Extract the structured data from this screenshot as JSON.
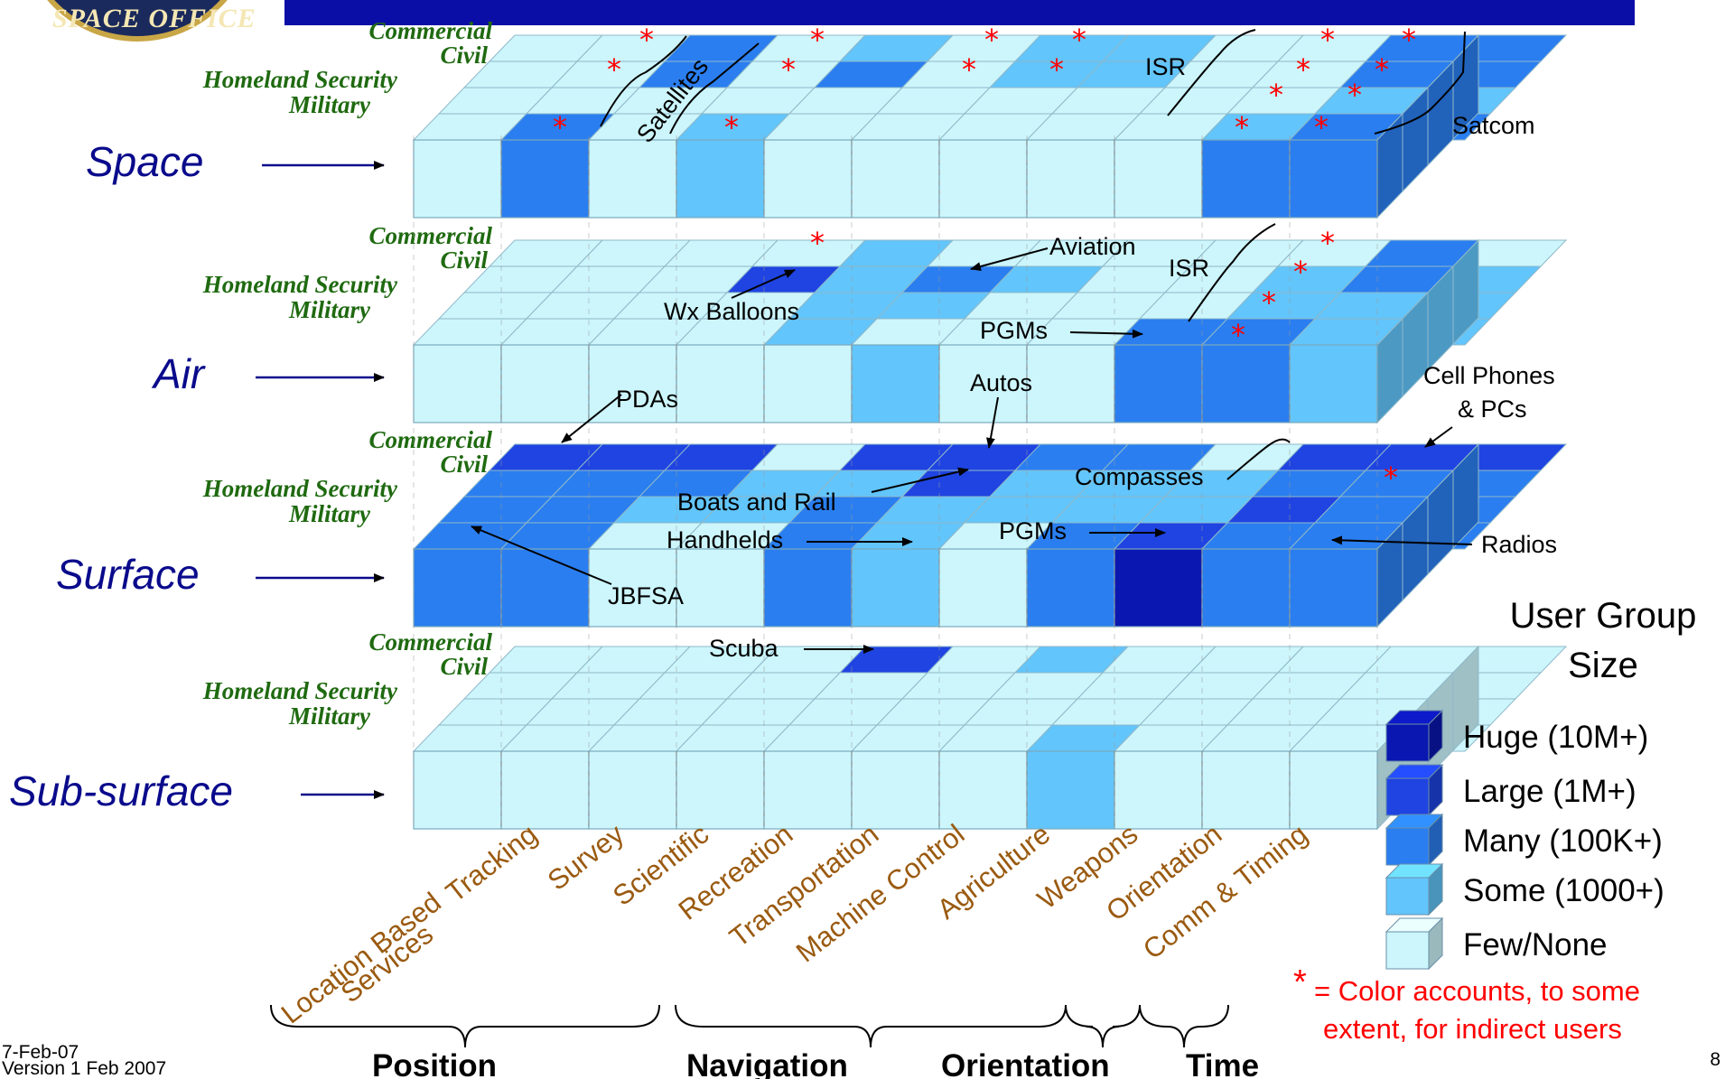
{
  "seal": {
    "text": "SPACE OFFICE"
  },
  "levels": [
    {
      "name": "Space"
    },
    {
      "name": "Air"
    },
    {
      "name": "Surface"
    },
    {
      "name": "Sub-surface"
    }
  ],
  "user_rows": [
    "Commercial",
    "Civil",
    "Homeland Security",
    "Military"
  ],
  "applications": [
    "Location Based Services",
    "Tracking",
    "Survey",
    "Scientific",
    "Recreation",
    "Transportation",
    "Machine Control",
    "Agriculture",
    "Weapons",
    "Orientation",
    "Comm & Timing"
  ],
  "categories": [
    "Position",
    "Navigation",
    "Orientation",
    "Time"
  ],
  "annotations": {
    "satellites": "Satellites",
    "isr_space": "ISR",
    "satcom": "Satcom",
    "aviation": "Aviation",
    "isr_air": "ISR",
    "wx_balloons": "Wx Balloons",
    "pgms_air": "PGMs",
    "pdas": "PDAs",
    "autos": "Autos",
    "cell_phones_1": "Cell Phones",
    "cell_phones_2": "& PCs",
    "compasses": "Compasses",
    "boats_rail": "Boats and Rail",
    "handhelds": "Handhelds",
    "pgms_surface": "PGMs",
    "radios": "Radios",
    "jbfsa": "JBFSA",
    "scuba": "Scuba"
  },
  "legend": {
    "title_1": "User Group",
    "title_2": "Size",
    "items": [
      {
        "label": "Huge (10M+)",
        "color": "#0a17b0"
      },
      {
        "label": "Large (1M+)",
        "color": "#1f44e2"
      },
      {
        "label": "Many (100K+)",
        "color": "#2a7ef0"
      },
      {
        "label": "Some (1000+)",
        "color": "#62c5fb"
      },
      {
        "label": "Few/None",
        "color": "#ccf6fc"
      }
    ],
    "note_star": "*",
    "note_1": "=  Color accounts, to some",
    "note_2": "extent, for indirect users"
  },
  "footer": {
    "date": "7-Feb-07",
    "version": "Version 1 Feb 2007",
    "page": "8"
  },
  "colors": {
    "few": "#ccf6fc",
    "some": "#62c5fb",
    "many": "#2a7ef0",
    "large": "#1f44e2",
    "huge": "#0a17b0",
    "level_label": "#0a0a8c",
    "user_label": "#1f6a10",
    "app_label": "#9a5a10",
    "annotation_star": "#ff0000"
  },
  "grid": {
    "Space": {
      "front": [
        "few",
        "many",
        "few",
        "some",
        "few",
        "few",
        "few",
        "few",
        "few",
        "many",
        "many"
      ],
      "rows": {
        "Commercial": [
          "few",
          "few",
          "many",
          "few",
          "some",
          "few",
          "some",
          "some",
          "few",
          "few",
          "many",
          "many"
        ],
        "Civil": [
          "few",
          "few",
          "many",
          "few",
          "many",
          "few",
          "some",
          "some",
          "few",
          "few",
          "many",
          "many"
        ],
        "Homeland Security": [
          "few",
          "few",
          "few",
          "few",
          "few",
          "few",
          "few",
          "few",
          "few",
          "few",
          "some",
          "some"
        ],
        "Military": [
          "few",
          "many",
          "few",
          "some",
          "few",
          "few",
          "few",
          "few",
          "few",
          "some",
          "many",
          "many"
        ]
      }
    },
    "Air": {
      "front": [
        "few",
        "few",
        "few",
        "few",
        "few",
        "some",
        "few",
        "few",
        "many",
        "many",
        "some"
      ],
      "rows": {
        "Commercial": [
          "few",
          "few",
          "few",
          "few",
          "some",
          "few",
          "few",
          "few",
          "few",
          "few",
          "many",
          "few"
        ],
        "Civil": [
          "few",
          "few",
          "few",
          "large",
          "some",
          "many",
          "some",
          "few",
          "few",
          "some",
          "many",
          "some"
        ],
        "Homeland Security": [
          "few",
          "few",
          "few",
          "few",
          "some",
          "some",
          "few",
          "few",
          "few",
          "some",
          "some",
          "some"
        ],
        "Military": [
          "few",
          "few",
          "few",
          "few",
          "some",
          "few",
          "few",
          "few",
          "many",
          "many",
          "some",
          "some"
        ]
      }
    },
    "Surface": {
      "front": [
        "many",
        "many",
        "few",
        "few",
        "many",
        "some",
        "few",
        "many",
        "huge",
        "many",
        "many"
      ],
      "rows": {
        "Commercial": [
          "large",
          "large",
          "large",
          "few",
          "large",
          "large",
          "many",
          "many",
          "few",
          "large",
          "large",
          "large"
        ],
        "Civil": [
          "many",
          "many",
          "many",
          "some",
          "some",
          "large",
          "some",
          "some",
          "some",
          "many",
          "many",
          "many"
        ],
        "Homeland Security": [
          "many",
          "many",
          "some",
          "some",
          "many",
          "some",
          "some",
          "some",
          "some",
          "large",
          "many",
          "many"
        ],
        "Military": [
          "many",
          "many",
          "few",
          "few",
          "many",
          "some",
          "few",
          "many",
          "large",
          "many",
          "many",
          "many"
        ]
      }
    },
    "Sub-surface": {
      "front": [
        "few",
        "few",
        "few",
        "few",
        "few",
        "few",
        "few",
        "some",
        "few",
        "few",
        "few"
      ],
      "rows": {
        "Commercial": [
          "few",
          "few",
          "few",
          "few",
          "large",
          "few",
          "some",
          "few",
          "few",
          "few",
          "few",
          "few"
        ],
        "Civil": [
          "few",
          "few",
          "few",
          "few",
          "few",
          "few",
          "few",
          "few",
          "few",
          "few",
          "few",
          "few"
        ],
        "Homeland Security": [
          "few",
          "few",
          "few",
          "few",
          "few",
          "few",
          "few",
          "few",
          "few",
          "few",
          "few",
          "few"
        ],
        "Military": [
          "few",
          "few",
          "few",
          "few",
          "few",
          "few",
          "few",
          "some",
          "few",
          "few",
          "few",
          "few"
        ]
      }
    }
  }
}
